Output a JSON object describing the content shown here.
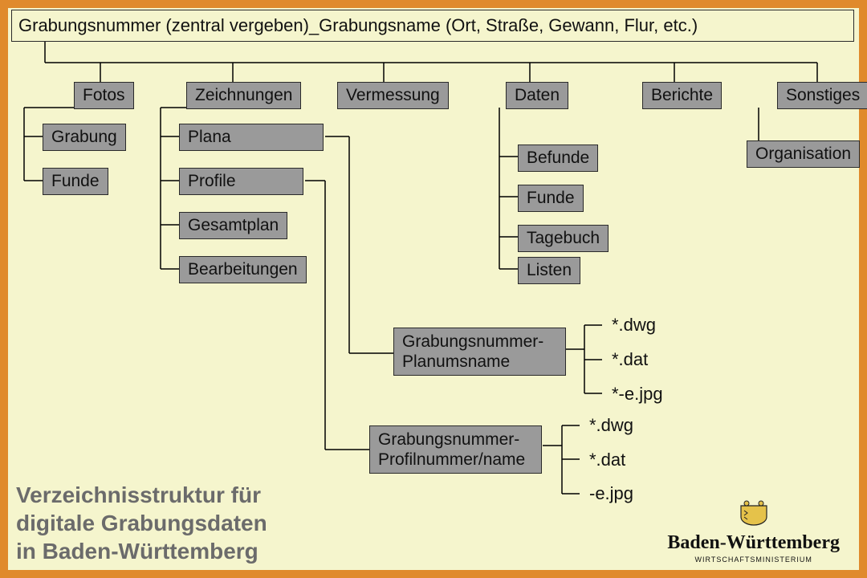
{
  "diagram": {
    "type": "tree",
    "root_label": "Grabungsnummer (zentral vergeben)_Grabungsname (Ort, Straße, Gewann, Flur, etc.)",
    "level1": {
      "fotos": "Fotos",
      "zeichnungen": "Zeichnungen",
      "vermessung": "Vermessung",
      "daten": "Daten",
      "berichte": "Berichte",
      "sonstiges": "Sonstiges"
    },
    "fotos_children": {
      "grabung": "Grabung",
      "funde": "Funde"
    },
    "zeichnungen_children": {
      "plana": "Plana",
      "profile": "Profile",
      "gesamtplan": "Gesamtplan",
      "bearbeitungen": "Bearbeitungen"
    },
    "daten_children": {
      "befunde": "Befunde",
      "funde": "Funde",
      "tagebuch": "Tagebuch",
      "listen": "Listen"
    },
    "sonstiges_children": {
      "organisation": "Organisation"
    },
    "planum_box": "Grabungsnummer-\nPlanumsname",
    "profil_box": "Grabungsnummer-\nProfilnummer/name",
    "planum_files": [
      "*.dwg",
      "*.dat",
      "*-e.jpg"
    ],
    "profil_files": [
      "*.dwg",
      "*.dat",
      "-e.jpg"
    ],
    "title": "Verzeichnisstruktur für\ndigitale Grabungsdaten\nin Baden-Württemberg",
    "logo": {
      "main": "Baden-Württemberg",
      "sub": "WIRTSCHAFTSMINISTERIUM"
    },
    "colors": {
      "background": "#f5f5cd",
      "border": "#e08a2c",
      "box_fill": "#9a9a9a",
      "box_border": "#2a2a2a",
      "text": "#111111",
      "title_text": "#6b6b6b",
      "line": "#000000"
    },
    "fonts": {
      "body_size": 21,
      "root_size": 22,
      "title_size": 28,
      "file_size": 22
    }
  }
}
